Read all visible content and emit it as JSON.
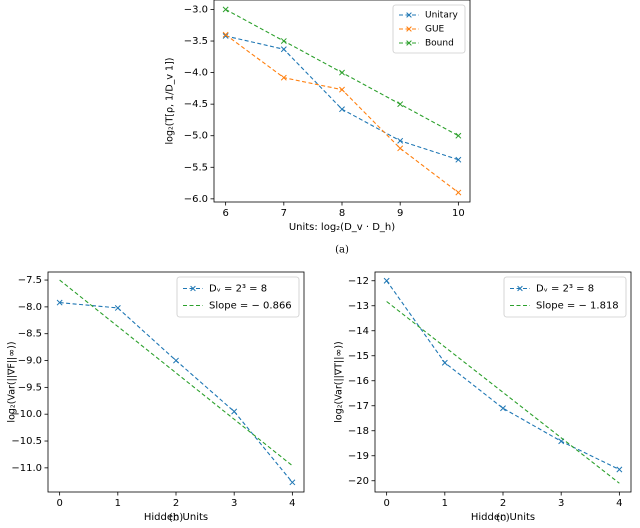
{
  "chart_data": [
    {
      "id": "a",
      "type": "line",
      "caption": "(a)",
      "xlabel": "Units: log₂(D_v · D_h)",
      "ylabel": "log₂(T[ρ, 1/D_v 1])",
      "xlim": [
        5.8,
        10.2
      ],
      "ylim": [
        -6.05,
        -2.85
      ],
      "xticks": [
        6,
        7,
        8,
        9,
        10
      ],
      "xtick_labels": [
        "6",
        "7",
        "8",
        "9",
        "10"
      ],
      "yticks": [
        -3.0,
        -3.5,
        -4.0,
        -4.5,
        -5.0,
        -5.5,
        -6.0
      ],
      "ytick_labels": [
        "−3.0",
        "−3.5",
        "−4.0",
        "−4.5",
        "−5.0",
        "−5.5",
        "−6.0"
      ],
      "grid": false,
      "legend": "top-right",
      "series": [
        {
          "name": "Unitary",
          "color": "#1f77b4",
          "x": [
            6,
            7,
            8,
            9,
            10
          ],
          "values": [
            -3.42,
            -3.63,
            -4.58,
            -5.08,
            -5.38
          ]
        },
        {
          "name": "GUE",
          "color": "#ff7f0e",
          "x": [
            6,
            7,
            8,
            9,
            10
          ],
          "values": [
            -3.4,
            -4.08,
            -4.27,
            -5.2,
            -5.9
          ]
        },
        {
          "name": "Bound",
          "color": "#2ca02c",
          "x": [
            6,
            7,
            8,
            9,
            10
          ],
          "values": [
            -3.0,
            -3.5,
            -4.0,
            -4.5,
            -5.0
          ]
        }
      ]
    },
    {
      "id": "b",
      "type": "line",
      "caption": "(b)",
      "xlabel": "Hidden Units",
      "ylabel": "log₂(Var(||∇F||∞))",
      "xlim": [
        -0.2,
        4.2
      ],
      "ylim": [
        -11.45,
        -7.35
      ],
      "xticks": [
        0,
        1,
        2,
        3,
        4
      ],
      "xtick_labels": [
        "0",
        "1",
        "2",
        "3",
        "4"
      ],
      "yticks": [
        -7.5,
        -8.0,
        -8.5,
        -9.0,
        -9.5,
        -10.0,
        -10.5,
        -11.0
      ],
      "ytick_labels": [
        "−7.5",
        "−8.0",
        "−8.5",
        "−9.0",
        "−9.5",
        "−10.0",
        "−10.5",
        "−11.0"
      ],
      "grid": false,
      "legend": "top-right",
      "series": [
        {
          "name": "D_v = 2³ = 8",
          "legend_label": "Dᵥ = 2³ = 8",
          "color": "#1f77b4",
          "marker": "x",
          "x": [
            0,
            1,
            2,
            3,
            4
          ],
          "values": [
            -7.92,
            -8.02,
            -9.0,
            -9.95,
            -11.27
          ]
        },
        {
          "name": "Slope = −0.866",
          "legend_label": "Slope = − 0.866",
          "color": "#2ca02c",
          "marker": "none",
          "x": [
            0,
            4
          ],
          "values": [
            -7.5,
            -10.96
          ]
        }
      ]
    },
    {
      "id": "c",
      "type": "line",
      "caption": "(c)",
      "xlabel": "Hidden Units",
      "ylabel": "log₂(Var(||∇T||∞))",
      "xlim": [
        -0.2,
        4.2
      ],
      "ylim": [
        -20.45,
        -11.65
      ],
      "xticks": [
        0,
        1,
        2,
        3,
        4
      ],
      "xtick_labels": [
        "0",
        "1",
        "2",
        "3",
        "4"
      ],
      "yticks": [
        -12,
        -13,
        -14,
        -15,
        -16,
        -17,
        -18,
        -19,
        -20
      ],
      "ytick_labels": [
        "−12",
        "−13",
        "−14",
        "−15",
        "−16",
        "−17",
        "−18",
        "−19",
        "−20"
      ],
      "grid": false,
      "legend": "top-right",
      "series": [
        {
          "name": "D_v = 2³ = 8",
          "legend_label": "Dᵥ = 2³ = 8",
          "color": "#1f77b4",
          "marker": "x",
          "x": [
            0,
            1,
            2,
            3,
            4
          ],
          "values": [
            -12.0,
            -15.28,
            -17.1,
            -18.42,
            -19.55
          ]
        },
        {
          "name": "Slope = −1.818",
          "legend_label": "Slope = − 1.818",
          "color": "#2ca02c",
          "marker": "none",
          "x": [
            0,
            4
          ],
          "values": [
            -12.83,
            -20.1
          ]
        }
      ]
    }
  ]
}
